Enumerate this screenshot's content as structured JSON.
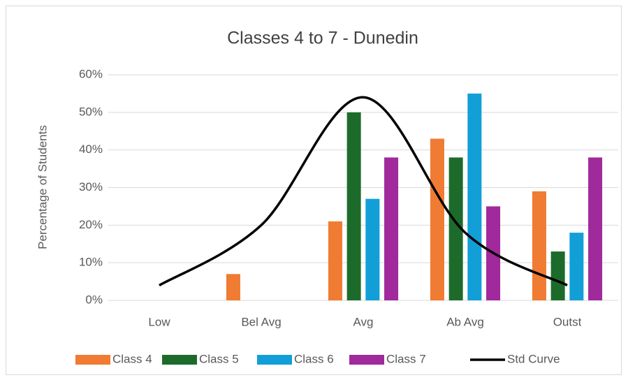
{
  "chart_data": {
    "type": "bar",
    "title": "Classes 4 to 7 - Dunedin",
    "y_label": "Percentage of Students",
    "categories": [
      "Low",
      "Bel Avg",
      "Avg",
      "Ab Avg",
      "Outst"
    ],
    "series": [
      {
        "name": "Class 4",
        "color": "#f07b32",
        "values": [
          0,
          7,
          21,
          43,
          29
        ]
      },
      {
        "name": "Class 5",
        "color": "#1d6b2b",
        "values": [
          0,
          0,
          50,
          38,
          13
        ]
      },
      {
        "name": "Class 6",
        "color": "#129fd7",
        "values": [
          0,
          0,
          27,
          55,
          18
        ]
      },
      {
        "name": "Class 7",
        "color": "#a0299c",
        "values": [
          0,
          0,
          38,
          25,
          38
        ]
      },
      {
        "name": "Std Curve",
        "type": "line",
        "color": "#000000",
        "values": [
          4,
          20,
          54,
          18,
          4
        ]
      }
    ],
    "ylim": [
      0,
      60
    ],
    "yticks": [
      {
        "value": 0,
        "label": "0%"
      },
      {
        "value": 10,
        "label": "10%"
      },
      {
        "value": 20,
        "label": "20%"
      },
      {
        "value": 30,
        "label": "30%"
      },
      {
        "value": 40,
        "label": "40%"
      },
      {
        "value": 50,
        "label": "50%"
      },
      {
        "value": 60,
        "label": "60%"
      }
    ],
    "grid": true,
    "legend": "bottom"
  }
}
